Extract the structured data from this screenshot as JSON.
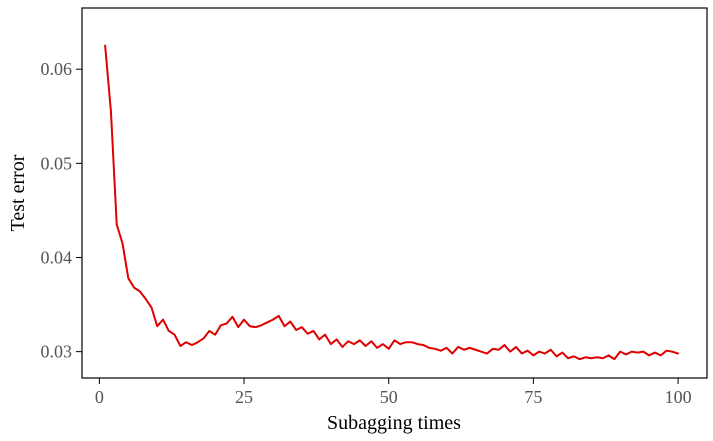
{
  "chart_data": {
    "type": "line",
    "title": "",
    "xlabel": "Subagging times",
    "ylabel": "Test error",
    "xlim": [
      -3,
      105
    ],
    "ylim": [
      0.0272,
      0.0665
    ],
    "xticks": [
      0,
      25,
      50,
      75,
      100
    ],
    "xtick_labels": [
      "0",
      "25",
      "50",
      "75",
      "100"
    ],
    "yticks": [
      0.03,
      0.04,
      0.05,
      0.06
    ],
    "ytick_labels": [
      "0.03",
      "0.04",
      "0.05",
      "0.06"
    ],
    "grid": false,
    "legend": "none",
    "series": [
      {
        "color": "#e00000",
        "x": [
          1,
          2,
          3,
          4,
          5,
          6,
          7,
          8,
          9,
          10,
          11,
          12,
          13,
          14,
          15,
          16,
          17,
          18,
          19,
          20,
          21,
          22,
          23,
          24,
          25,
          26,
          27,
          28,
          29,
          30,
          31,
          32,
          33,
          34,
          35,
          36,
          37,
          38,
          39,
          40,
          41,
          42,
          43,
          44,
          45,
          46,
          47,
          48,
          49,
          50,
          51,
          52,
          53,
          54,
          55,
          56,
          57,
          58,
          59,
          60,
          61,
          62,
          63,
          64,
          65,
          66,
          67,
          68,
          69,
          70,
          71,
          72,
          73,
          74,
          75,
          76,
          77,
          78,
          79,
          80,
          81,
          82,
          83,
          84,
          85,
          86,
          87,
          88,
          89,
          90,
          91,
          92,
          93,
          94,
          95,
          96,
          97,
          98,
          99,
          100
        ],
        "y": [
          0.0625,
          0.0555,
          0.0435,
          0.0415,
          0.0378,
          0.0368,
          0.0364,
          0.0356,
          0.0347,
          0.0327,
          0.0334,
          0.0322,
          0.0318,
          0.0306,
          0.031,
          0.0307,
          0.031,
          0.0314,
          0.0322,
          0.0318,
          0.0328,
          0.033,
          0.0337,
          0.0326,
          0.0334,
          0.0327,
          0.0326,
          0.0328,
          0.0331,
          0.0334,
          0.0338,
          0.0327,
          0.0332,
          0.0323,
          0.0326,
          0.0319,
          0.0322,
          0.0313,
          0.0318,
          0.0308,
          0.0313,
          0.0305,
          0.0311,
          0.0308,
          0.0312,
          0.0306,
          0.0311,
          0.0304,
          0.0308,
          0.0303,
          0.0312,
          0.0308,
          0.031,
          0.031,
          0.0308,
          0.0307,
          0.0304,
          0.0303,
          0.0301,
          0.0304,
          0.0298,
          0.0305,
          0.0302,
          0.0304,
          0.0302,
          0.03,
          0.0298,
          0.0303,
          0.0302,
          0.0307,
          0.03,
          0.0305,
          0.0298,
          0.0301,
          0.0296,
          0.03,
          0.0298,
          0.0302,
          0.0295,
          0.0299,
          0.0293,
          0.0295,
          0.0292,
          0.0294,
          0.0293,
          0.0294,
          0.0293,
          0.0296,
          0.0292,
          0.03,
          0.0297,
          0.03,
          0.0299,
          0.03,
          0.0296,
          0.0299,
          0.0296,
          0.0301,
          0.03,
          0.0298
        ]
      }
    ]
  }
}
